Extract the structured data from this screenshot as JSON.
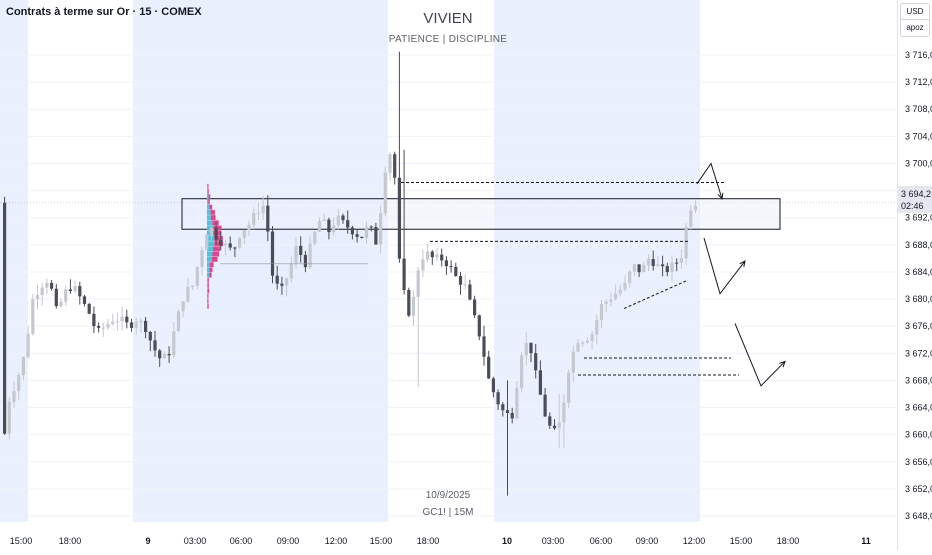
{
  "header": {
    "instrument": "Contrats à terme sur Or · 15 · COMEX"
  },
  "watermark": {
    "title": "VIVIEN",
    "subtitle": "PATIENCE  |  DISCIPLINE",
    "date": "10/9/2025",
    "symbol": "GC1! | 15M"
  },
  "price_axis": {
    "currency": "USD",
    "unit_label": "apoz",
    "current_price": "3 694,2",
    "countdown": "02:46"
  },
  "colors": {
    "bull": "#c6c8cf",
    "bear": "#4a4d56",
    "session_shade": "#eaf0fd",
    "zone_fill": "#edf1fb",
    "profile_cyan": "#4fc3d9",
    "profile_pink": "#e0458f"
  },
  "chart_data": {
    "type": "candlestick",
    "title": "Contrats à terme sur Or · 15 · COMEX",
    "y_ticks": [
      3716,
      3712,
      3708,
      3704,
      3700,
      3696,
      3692,
      3688,
      3684,
      3680,
      3676,
      3672,
      3668,
      3664,
      3660,
      3656,
      3652,
      3648
    ],
    "y_tick_labels": [
      "3 716,0",
      "3 712,0",
      "3 708,0",
      "3 704,0",
      "3 700,0",
      "3 696,0",
      "3 692,0",
      "3 688,0",
      "3 684,0",
      "3 680,0",
      "3 676,0",
      "3 672,0",
      "3 668,0",
      "3 664,0",
      "3 660,0",
      "3 656,0",
      "3 652,0",
      "3 648,0"
    ],
    "ylim": [
      3646,
      3722
    ],
    "x_ticks": [
      {
        "label": "15:00",
        "pos": 21
      },
      {
        "label": "18:00",
        "pos": 70
      },
      {
        "label": "9",
        "pos": 148,
        "bold": true
      },
      {
        "label": "03:00",
        "pos": 195
      },
      {
        "label": "06:00",
        "pos": 241
      },
      {
        "label": "09:00",
        "pos": 288
      },
      {
        "label": "12:00",
        "pos": 336
      },
      {
        "label": "15:00",
        "pos": 381
      },
      {
        "label": "18:00",
        "pos": 428
      },
      {
        "label": "10",
        "pos": 507,
        "bold": true
      },
      {
        "label": "03:00",
        "pos": 553
      },
      {
        "label": "06:00",
        "pos": 601
      },
      {
        "label": "09:00",
        "pos": 647
      },
      {
        "label": "12:00",
        "pos": 694
      },
      {
        "label": "15:00",
        "pos": 741
      },
      {
        "label": "18:00",
        "pos": 788
      },
      {
        "label": "11",
        "pos": 866,
        "bold": true
      }
    ],
    "current_price": 3694.2,
    "supply_zone": {
      "low": 3690.3,
      "high": 3694.8
    },
    "anchors": [
      [
        4,
        3656
      ],
      [
        12,
        3665
      ],
      [
        20,
        3668
      ],
      [
        28,
        3672
      ],
      [
        36,
        3680
      ],
      [
        44,
        3682
      ],
      [
        52,
        3683
      ],
      [
        60,
        3678
      ],
      [
        68,
        3681
      ],
      [
        76,
        3682
      ],
      [
        84,
        3680
      ],
      [
        92,
        3678
      ],
      [
        100,
        3675
      ],
      [
        108,
        3676
      ],
      [
        116,
        3677
      ],
      [
        124,
        3677
      ],
      [
        132,
        3676
      ],
      [
        140,
        3677
      ],
      [
        148,
        3676
      ],
      [
        156,
        3673
      ],
      [
        164,
        3671
      ],
      [
        172,
        3672
      ],
      [
        180,
        3677
      ],
      [
        188,
        3681
      ],
      [
        196,
        3682
      ],
      [
        204,
        3687
      ],
      [
        212,
        3691
      ],
      [
        220,
        3689
      ],
      [
        228,
        3688
      ],
      [
        236,
        3687
      ],
      [
        244,
        3690
      ],
      [
        252,
        3691
      ],
      [
        260,
        3693
      ],
      [
        268,
        3694
      ],
      [
        276,
        3683
      ],
      [
        284,
        3681
      ],
      [
        292,
        3684
      ],
      [
        300,
        3688
      ],
      [
        308,
        3685
      ],
      [
        316,
        3689
      ],
      [
        324,
        3692
      ],
      [
        332,
        3690
      ],
      [
        340,
        3692
      ],
      [
        348,
        3691
      ],
      [
        356,
        3690
      ],
      [
        364,
        3689
      ],
      [
        372,
        3691
      ],
      [
        380,
        3688
      ],
      [
        388,
        3699
      ],
      [
        396,
        3703
      ],
      [
        402,
        3686
      ],
      [
        408,
        3680
      ],
      [
        414,
        3677
      ],
      [
        420,
        3684
      ],
      [
        428,
        3687
      ],
      [
        436,
        3686
      ],
      [
        444,
        3686
      ],
      [
        452,
        3685
      ],
      [
        460,
        3683
      ],
      [
        468,
        3682
      ],
      [
        476,
        3678
      ],
      [
        484,
        3674
      ],
      [
        492,
        3668
      ],
      [
        500,
        3665
      ],
      [
        508,
        3663
      ],
      [
        516,
        3663
      ],
      [
        524,
        3672
      ],
      [
        532,
        3674
      ],
      [
        540,
        3668
      ],
      [
        548,
        3663
      ],
      [
        556,
        3660
      ],
      [
        564,
        3662
      ],
      [
        572,
        3670
      ],
      [
        580,
        3674
      ],
      [
        588,
        3674
      ],
      [
        596,
        3675
      ],
      [
        604,
        3679
      ],
      [
        612,
        3680
      ],
      [
        620,
        3681
      ],
      [
        628,
        3682
      ],
      [
        636,
        3685
      ],
      [
        644,
        3684
      ],
      [
        652,
        3686
      ],
      [
        660,
        3685
      ],
      [
        668,
        3684
      ],
      [
        676,
        3685
      ],
      [
        684,
        3686
      ],
      [
        692,
        3693
      ],
      [
        696,
        3694.2
      ]
    ],
    "candle_spacing": 4.7,
    "candle_x_start": 3,
    "candle_x_end": 697,
    "annotations": [
      {
        "type": "hline-dashed",
        "price": 3697.2,
        "from": 401,
        "to": 725
      },
      {
        "type": "hline-dashed",
        "price": 3688.5,
        "from": 430,
        "to": 690
      },
      {
        "type": "hline-dashed",
        "price": 3671.3,
        "from": 584,
        "to": 731
      },
      {
        "type": "hline-dashed",
        "price": 3668.8,
        "from": 578,
        "to": 739
      },
      {
        "type": "hline-solid-thin",
        "price": 3685.2,
        "from": 220,
        "to": 368
      },
      {
        "type": "trend-dashed",
        "from": [
          624,
          3678.6
        ],
        "to": [
          688,
          3682.8
        ]
      }
    ],
    "projections": [
      {
        "points": [
          [
            697,
            3697
          ],
          [
            711,
            3700
          ],
          [
            722,
            3694.8
          ]
        ]
      },
      {
        "points": [
          [
            704,
            3689
          ],
          [
            720,
            3680.8
          ],
          [
            745,
            3685.6
          ]
        ]
      },
      {
        "points": [
          [
            735,
            3676.4
          ],
          [
            761,
            3667.2
          ],
          [
            785,
            3670.8
          ]
        ]
      }
    ],
    "volume_profile_levels": 24
  }
}
